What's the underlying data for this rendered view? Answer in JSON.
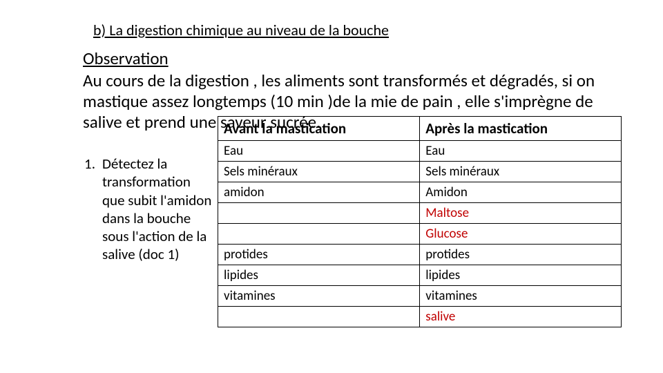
{
  "title": "b) La digestion  chimique au niveau de la bouche",
  "heading": "Observation",
  "body": "Au cours de la digestion , les aliments sont transformés et dégradés, si on mastique assez longtemps (10 min )de la mie de pain , elle s'imprègne de salive et prend une saveur sucrée.",
  "list": {
    "num": "1.",
    "text": "Détectez la transformation que subit l'amidon dans la bouche sous l'action de la salive (doc 1)"
  },
  "table": {
    "header_left": "Avant la mastication",
    "header_right": "Après la mastication",
    "rows": [
      {
        "left": "Eau",
        "right": "Eau",
        "right_red": false
      },
      {
        "left": "Sels minéraux",
        "right": "Sels minéraux",
        "right_red": false
      },
      {
        "left": "amidon",
        "right": "Amidon",
        "right_red": false
      },
      {
        "left": "",
        "right": "Maltose",
        "right_red": true
      },
      {
        "left": "",
        "right": "Glucose",
        "right_red": true
      },
      {
        "left": "protides",
        "right": "protides",
        "right_red": false
      },
      {
        "left": "lipides",
        "right": "lipides",
        "right_red": false
      },
      {
        "left": "vitamines",
        "right": "vitamines",
        "right_red": false
      },
      {
        "left": "",
        "right": "salive",
        "right_red": true
      }
    ],
    "colors": {
      "border": "#000000",
      "text": "#000000",
      "highlight": "#c00000",
      "background": "#ffffff"
    }
  }
}
